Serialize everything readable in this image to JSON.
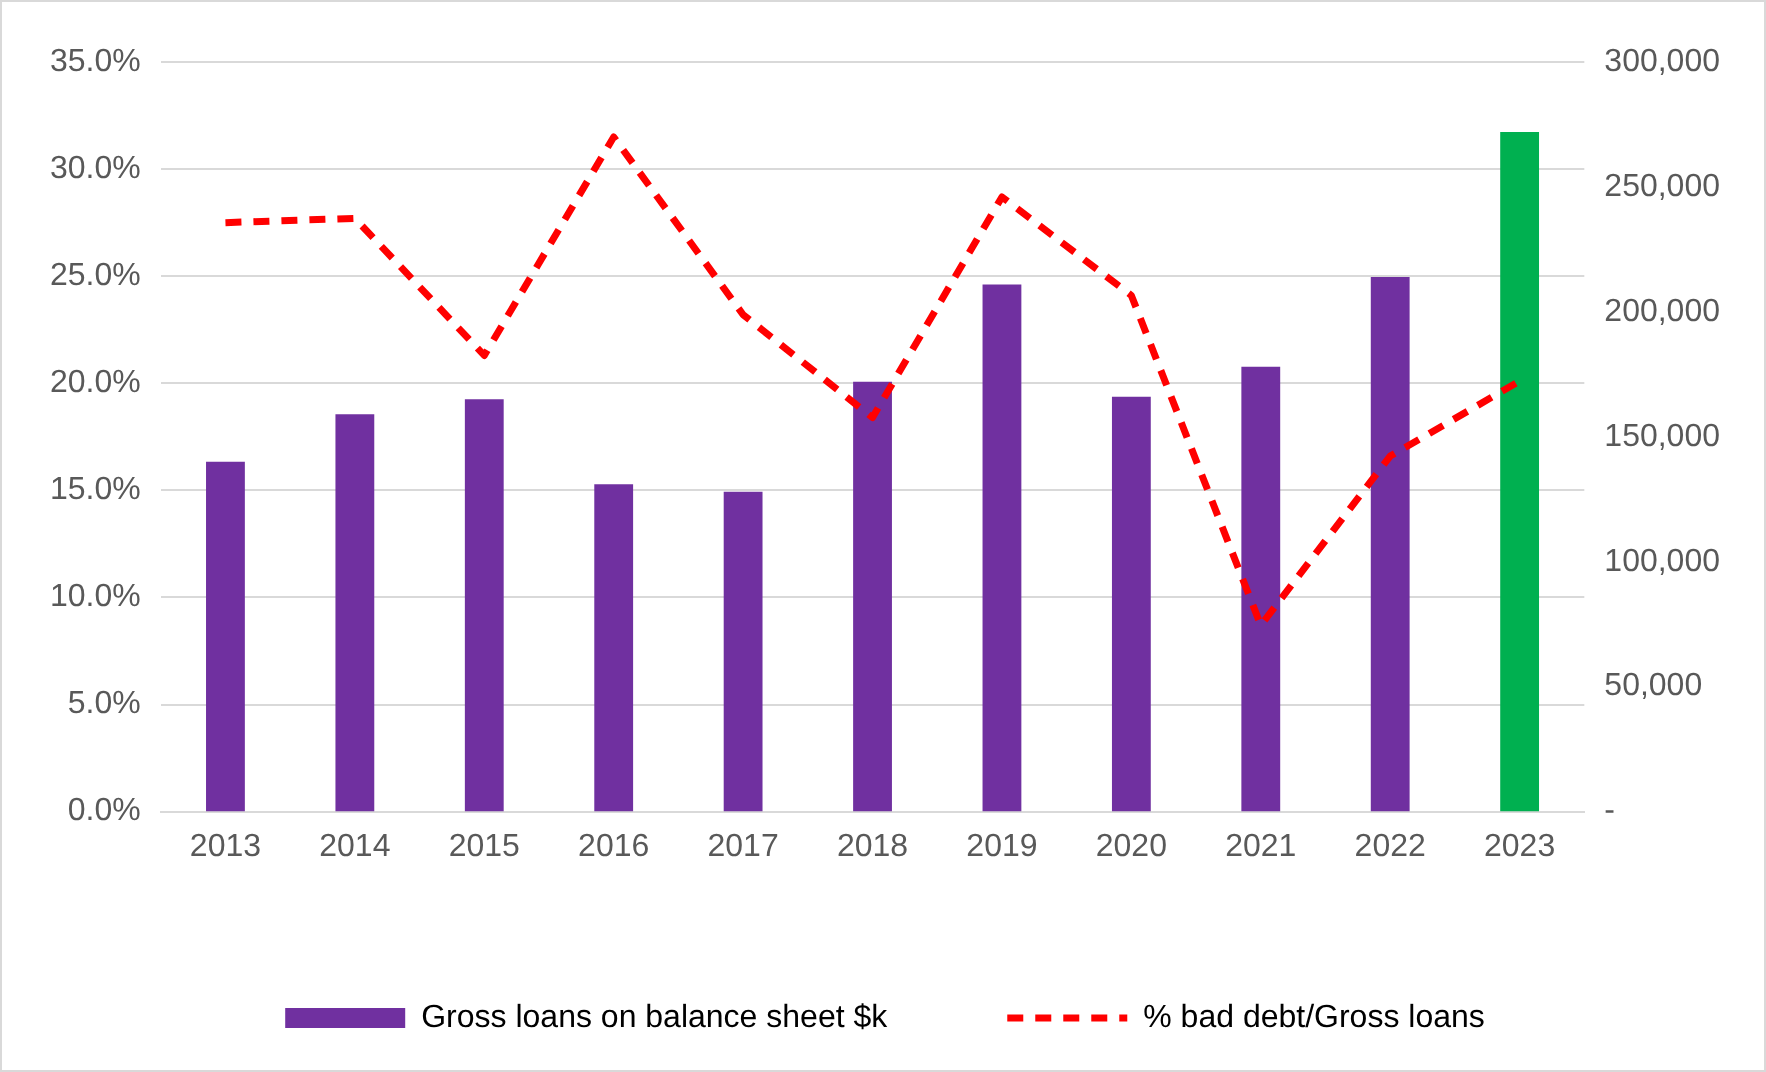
{
  "chart_data": {
    "type": "bar",
    "categories": [
      "2013",
      "2014",
      "2015",
      "2016",
      "2017",
      "2018",
      "2019",
      "2020",
      "2021",
      "2022",
      "2023"
    ],
    "series": [
      {
        "name": "Gross loans on balance sheet $k",
        "axis": "y2",
        "color": "#7030a0",
        "colors": [
          "#7030a0",
          "#7030a0",
          "#7030a0",
          "#7030a0",
          "#7030a0",
          "#7030a0",
          "#7030a0",
          "#7030a0",
          "#7030a0",
          "#7030a0",
          "#00b050"
        ],
        "values": [
          140000,
          159000,
          165000,
          131000,
          128000,
          172000,
          211000,
          166000,
          178000,
          214000,
          272000
        ]
      },
      {
        "name": "% bad debt/Gross loans",
        "type": "line",
        "axis": "y",
        "color": "#ff0000",
        "line_style": "dashed",
        "marker": "none",
        "values": [
          27.5,
          27.7,
          21.3,
          31.5,
          23.2,
          18.4,
          28.7,
          24.1,
          8.7,
          16.6,
          20.1
        ]
      }
    ],
    "ylim": [
      0,
      35
    ],
    "yticks": [
      {
        "value": 0,
        "label": "0.0%"
      },
      {
        "value": 5,
        "label": "5.0%"
      },
      {
        "value": 10,
        "label": "10.0%"
      },
      {
        "value": 15,
        "label": "15.0%"
      },
      {
        "value": 20,
        "label": "20.0%"
      },
      {
        "value": 25,
        "label": "25.0%"
      },
      {
        "value": 30,
        "label": "30.0%"
      },
      {
        "value": 35,
        "label": "35.0%"
      }
    ],
    "y2lim": [
      0,
      300000
    ],
    "y2ticks": [
      {
        "value": 0,
        "label": "-"
      },
      {
        "value": 50000,
        "label": "50,000"
      },
      {
        "value": 100000,
        "label": "100,000"
      },
      {
        "value": 150000,
        "label": "150,000"
      },
      {
        "value": 200000,
        "label": "200,000"
      },
      {
        "value": 250000,
        "label": "250,000"
      },
      {
        "value": 300000,
        "label": "300,000"
      }
    ],
    "grid": "y",
    "legend": "bottom"
  }
}
